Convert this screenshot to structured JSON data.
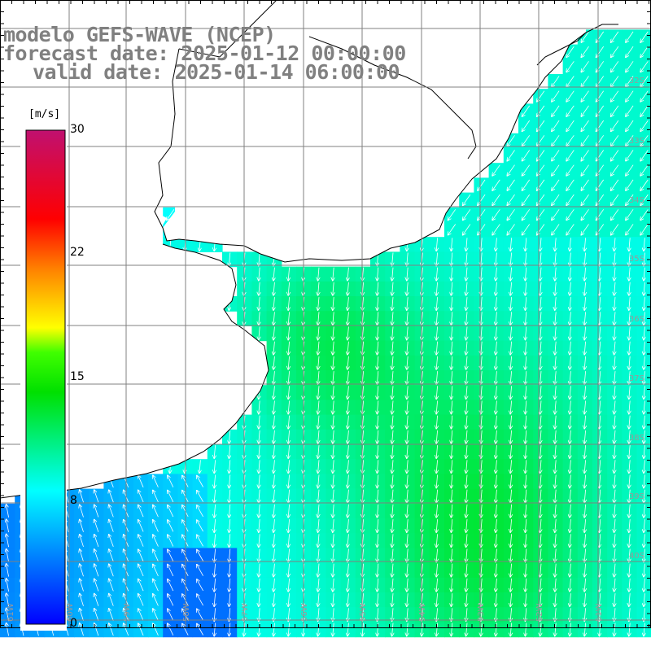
{
  "title": {
    "line1": "modelo GEFS-WAVE (NCEP)",
    "line2": "forecast date: 2025-01-12 00:00:00",
    "line3": "valid date: 2025-01-14 06:00:00"
  },
  "colorbar": {
    "unit": "[m/s]",
    "ticks": [
      "30",
      "22",
      "15",
      "8",
      "0"
    ],
    "min": 0,
    "max": 30,
    "colors": [
      "#0000ff",
      "#00a0ff",
      "#00ffff",
      "#00ff00",
      "#ffff00",
      "#ff8000",
      "#ff0000",
      "#c01070"
    ]
  },
  "map": {
    "type": "wind field with arrows",
    "land_color": "#ffffff",
    "coastline_color": "#000000",
    "grid_color": "#808080",
    "lat_labels": [
      "32S",
      "33S",
      "34S",
      "35S",
      "36S",
      "37S",
      "38S",
      "39S",
      "40S"
    ],
    "lon_labels": [
      "61W",
      "60W",
      "59W",
      "58W",
      "57W",
      "56W",
      "55W",
      "54W",
      "53W",
      "52W",
      "51W"
    ]
  },
  "chart_data": {
    "type": "heatmap",
    "variable": "wind speed",
    "unit": "m/s",
    "xlim": [
      -62,
      -51
    ],
    "ylim": [
      -41,
      -31
    ],
    "value_range": [
      0,
      30
    ],
    "regions": [
      {
        "area": "north-east coastal waters",
        "speed": 9
      },
      {
        "area": "Rio de la Plata estuary",
        "speed": 11
      },
      {
        "area": "central open ocean",
        "speed": 11
      },
      {
        "area": "south-west coastal waters",
        "speed": 5
      },
      {
        "area": "southern open ocean",
        "speed": 12
      }
    ],
    "arrow_direction": "predominantly southward in the east, northward near the south-west coast"
  }
}
